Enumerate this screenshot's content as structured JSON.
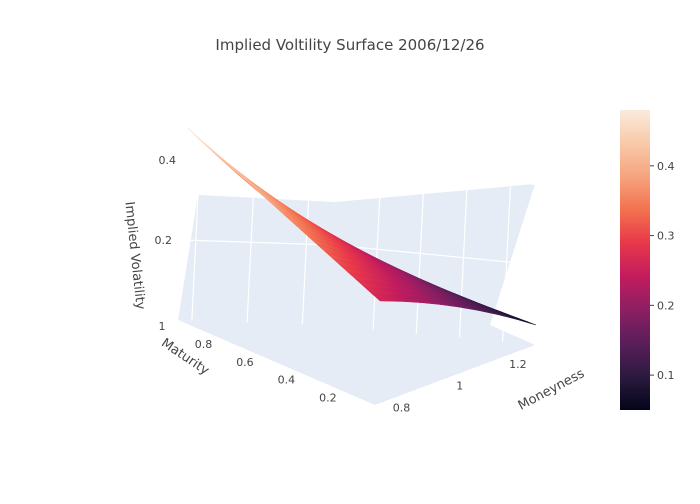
{
  "chart_data": {
    "type": "surface",
    "title": "Implied Voltility Surface 2006/12/26",
    "xaxis": {
      "title": "Moneyness",
      "ticks": [
        "0.8",
        "1",
        "1.2"
      ],
      "range": [
        0.75,
        1.3
      ]
    },
    "yaxis": {
      "title": "Maturity",
      "ticks": [
        "0.2",
        "0.4",
        "0.6",
        "0.8",
        "1"
      ],
      "range": [
        0.05,
        1.0
      ]
    },
    "zaxis": {
      "title": "Implied Volatility",
      "ticks": [
        "0.2",
        "0.4"
      ],
      "range": [
        0.05,
        0.5
      ]
    },
    "colorbar": {
      "ticks": [
        "0.1",
        "0.2",
        "0.3",
        "0.4"
      ],
      "range": [
        0.05,
        0.48
      ],
      "colorscale": [
        "#03051a",
        "#2b1a3f",
        "#5a1e5a",
        "#8c1f63",
        "#c21c5e",
        "#e8374a",
        "#f3714e",
        "#f6a47e",
        "#f8c9a9",
        "#faebdd"
      ]
    },
    "surface_corners": {
      "moneyness_0.8_maturity_1.0": 0.48,
      "moneyness_0.8_maturity_0.05": 0.26,
      "moneyness_1.3_maturity_1.0": 0.19,
      "moneyness_1.3_maturity_0.05": 0.05
    },
    "grid": true
  }
}
